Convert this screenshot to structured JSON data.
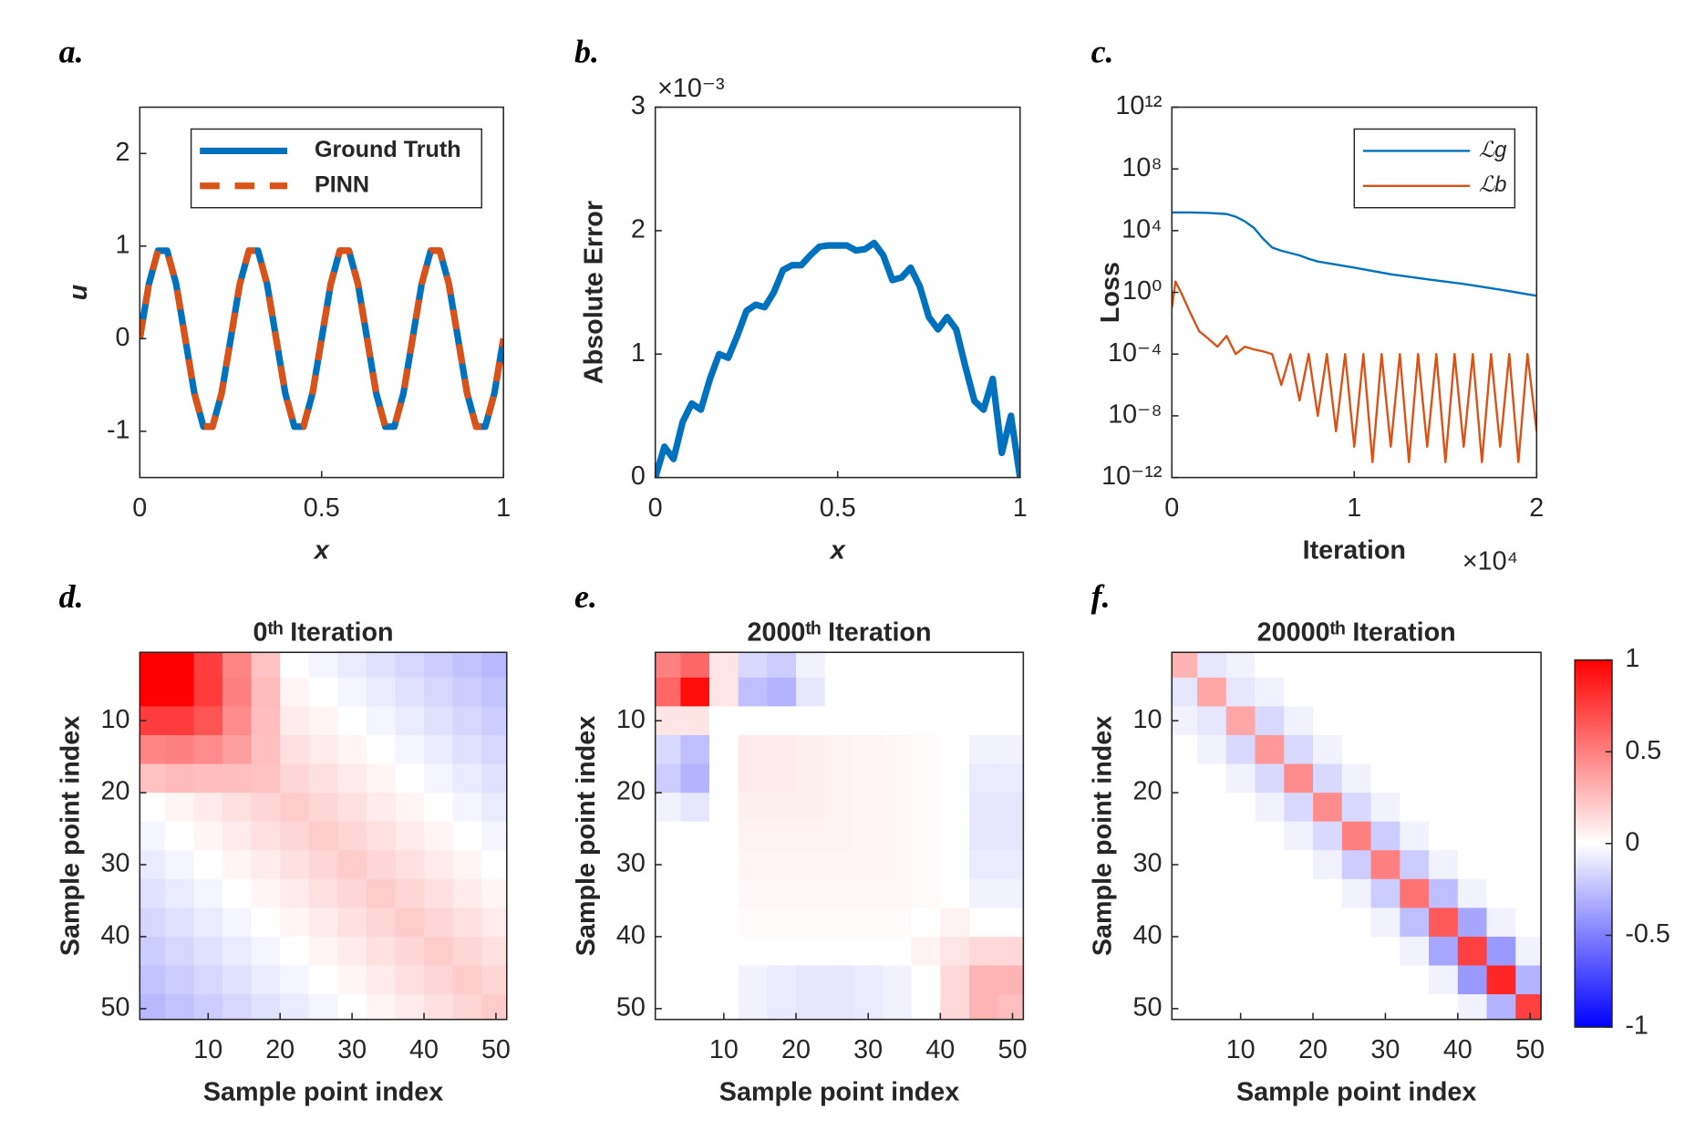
{
  "chart_data": [
    {
      "type": "line",
      "label": "a.",
      "xlabel": "x",
      "ylabel": "u",
      "xlim": [
        0,
        1
      ],
      "ylim": [
        -1.5,
        2.5
      ],
      "xticks": [
        0,
        0.5,
        1
      ],
      "yticks": [
        -1,
        0,
        1,
        2
      ],
      "legend": "upper right",
      "x": [
        0,
        0.025,
        0.05,
        0.075,
        0.1,
        0.125,
        0.15,
        0.175,
        0.2,
        0.225,
        0.25,
        0.275,
        0.3,
        0.325,
        0.35,
        0.375,
        0.4,
        0.425,
        0.45,
        0.475,
        0.5,
        0.525,
        0.55,
        0.575,
        0.6,
        0.625,
        0.65,
        0.675,
        0.7,
        0.725,
        0.75,
        0.775,
        0.8,
        0.825,
        0.85,
        0.875,
        0.9,
        0.925,
        0.95,
        0.975,
        1
      ],
      "series": [
        {
          "name": "Ground Truth",
          "color": "#0072bd",
          "style": "solid",
          "values": [
            0,
            0.59,
            0.95,
            0.95,
            0.59,
            0,
            -0.59,
            -0.95,
            -0.95,
            -0.59,
            0,
            0.59,
            0.95,
            0.95,
            0.59,
            0,
            -0.59,
            -0.95,
            -0.95,
            -0.59,
            0,
            0.59,
            0.95,
            0.95,
            0.59,
            0,
            -0.59,
            -0.95,
            -0.95,
            -0.59,
            0,
            0.59,
            0.95,
            0.95,
            0.59,
            0,
            -0.59,
            -0.95,
            -0.95,
            -0.59,
            0
          ]
        },
        {
          "name": "PINN",
          "color": "#d95319",
          "style": "dashed",
          "values": [
            0,
            0.59,
            0.95,
            0.95,
            0.59,
            0,
            -0.59,
            -0.95,
            -0.95,
            -0.59,
            0,
            0.59,
            0.95,
            0.95,
            0.59,
            0,
            -0.59,
            -0.95,
            -0.95,
            -0.59,
            0,
            0.59,
            0.95,
            0.95,
            0.59,
            0,
            -0.59,
            -0.95,
            -0.95,
            -0.59,
            0,
            0.59,
            0.95,
            0.95,
            0.59,
            0,
            -0.59,
            -0.95,
            -0.95,
            -0.59,
            0
          ]
        }
      ]
    },
    {
      "type": "line",
      "label": "b.",
      "xlabel": "x",
      "ylabel": "Absolute Error",
      "annotation": "×10⁻³",
      "xlim": [
        0,
        1
      ],
      "ylim": [
        0,
        3
      ],
      "xticks": [
        0,
        0.5,
        1
      ],
      "yticks": [
        0,
        1,
        2,
        3
      ],
      "x": [
        0,
        0.025,
        0.05,
        0.075,
        0.1,
        0.125,
        0.15,
        0.175,
        0.2,
        0.225,
        0.25,
        0.275,
        0.3,
        0.325,
        0.35,
        0.375,
        0.4,
        0.425,
        0.45,
        0.475,
        0.5,
        0.525,
        0.55,
        0.575,
        0.6,
        0.625,
        0.65,
        0.675,
        0.7,
        0.725,
        0.75,
        0.775,
        0.8,
        0.825,
        0.85,
        0.875,
        0.9,
        0.925,
        0.95,
        0.975,
        1
      ],
      "series": [
        {
          "color": "#0072bd",
          "style": "solid",
          "values": [
            0,
            0.25,
            0.15,
            0.45,
            0.6,
            0.55,
            0.8,
            1.0,
            0.97,
            1.15,
            1.35,
            1.4,
            1.38,
            1.5,
            1.68,
            1.72,
            1.72,
            1.8,
            1.87,
            1.88,
            1.88,
            1.88,
            1.84,
            1.85,
            1.9,
            1.8,
            1.6,
            1.62,
            1.7,
            1.55,
            1.3,
            1.2,
            1.3,
            1.2,
            0.9,
            0.62,
            0.55,
            0.8,
            0.2,
            0.5,
            0
          ]
        }
      ]
    },
    {
      "type": "line",
      "label": "c.",
      "xlabel": "Iteration",
      "ylabel": "Loss",
      "annotation": "×10⁴",
      "yscale": "log",
      "legend": "upper right",
      "xlim": [
        0,
        2
      ],
      "ylim": [
        1e-12,
        1000000000000.0
      ],
      "xticks": [
        0,
        1,
        2
      ],
      "yticks": [
        {
          "value": 1e-12,
          "label": "10⁻¹²"
        },
        {
          "value": 1e-08,
          "label": "10⁻⁸"
        },
        {
          "value": 0.0001,
          "label": "10⁻⁴"
        },
        {
          "value": 1,
          "label": "10⁰"
        },
        {
          "value": 10000.0,
          "label": "10⁴"
        },
        {
          "value": 100000000.0,
          "label": "10⁸"
        },
        {
          "value": 1000000000000.0,
          "label": "10¹²"
        }
      ],
      "series": [
        {
          "name": "ℒg",
          "color": "#0072bd",
          "style": "thin",
          "x": [
            0,
            0.1,
            0.2,
            0.3,
            0.35,
            0.4,
            0.45,
            0.5,
            0.55,
            0.6,
            0.7,
            0.75,
            0.8,
            1.0,
            1.2,
            1.4,
            1.6,
            1.8,
            2.0
          ],
          "values": [
            150000,
            150000,
            140000,
            120000,
            80000,
            40000,
            15000,
            3000,
            800,
            500,
            250,
            150,
            100,
            40,
            15,
            7,
            3.5,
            1.5,
            0.6
          ]
        },
        {
          "name": "ℒb",
          "color": "#d95319",
          "style": "thin",
          "x": [
            0,
            0.02,
            0.05,
            0.1,
            0.15,
            0.2,
            0.25,
            0.3,
            0.35,
            0.4,
            0.45,
            0.5,
            0.55,
            0.6,
            0.65,
            0.7,
            0.75,
            0.8,
            0.85,
            0.9,
            0.95,
            1.0,
            1.05,
            1.1,
            1.15,
            1.2,
            1.25,
            1.3,
            1.35,
            1.4,
            1.45,
            1.5,
            1.55,
            1.6,
            1.65,
            1.7,
            1.75,
            1.8,
            1.85,
            1.9,
            1.95,
            2.0
          ],
          "values": [
            0.1,
            5,
            1,
            0.05,
            0.003,
            0.001,
            0.0003,
            0.0015,
            0.0001,
            0.0003,
            0.0002,
            0.00015,
            0.0001,
            1e-06,
            0.0001,
            1e-07,
            0.0001,
            1e-08,
            0.0001,
            1e-09,
            0.0001,
            1e-10,
            0.0001,
            1e-11,
            0.0001,
            1e-10,
            0.0001,
            1e-11,
            0.0001,
            1e-10,
            0.0001,
            1e-11,
            0.0001,
            1e-10,
            0.0001,
            1e-11,
            0.0001,
            1e-10,
            0.0001,
            1e-11,
            0.0001,
            1e-09
          ]
        }
      ]
    },
    {
      "type": "heatmap",
      "label": "d.",
      "title": "0ᵗʰ Iteration",
      "xlabel": "Sample point index",
      "ylabel": "Sample point index",
      "xlim": [
        0.5,
        51.5
      ],
      "ylim": [
        51.5,
        0.5
      ],
      "xticks": [
        10,
        20,
        30,
        40,
        50
      ],
      "yticks": [
        10,
        20,
        30,
        40,
        50
      ],
      "clim": [
        -1,
        1
      ],
      "x": [
        2,
        6,
        10,
        14,
        18,
        22,
        26,
        30,
        34,
        38,
        42,
        46,
        50
      ],
      "y": [
        2,
        6,
        10,
        14,
        18,
        22,
        26,
        30,
        34,
        38,
        42,
        46,
        50
      ],
      "z": [
        [
          1.0,
          1.0,
          0.76,
          0.48,
          0.24,
          0,
          -0.04,
          -0.08,
          -0.12,
          -0.16,
          -0.2,
          -0.24,
          -0.28
        ],
        [
          1.0,
          1.0,
          0.77,
          0.5,
          0.27,
          0.04,
          0,
          -0.04,
          -0.08,
          -0.12,
          -0.16,
          -0.2,
          -0.24
        ],
        [
          0.76,
          0.77,
          0.67,
          0.45,
          0.26,
          0.08,
          0.04,
          0,
          -0.04,
          -0.08,
          -0.12,
          -0.16,
          -0.2
        ],
        [
          0.48,
          0.5,
          0.45,
          0.38,
          0.25,
          0.12,
          0.08,
          0.04,
          0,
          -0.04,
          -0.08,
          -0.12,
          -0.16
        ],
        [
          0.24,
          0.27,
          0.26,
          0.25,
          0.24,
          0.16,
          0.12,
          0.08,
          0.04,
          0,
          -0.04,
          -0.08,
          -0.12
        ],
        [
          0,
          0.04,
          0.08,
          0.12,
          0.16,
          0.2,
          0.16,
          0.12,
          0.08,
          0.04,
          0,
          -0.04,
          -0.08
        ],
        [
          -0.04,
          0,
          0.04,
          0.08,
          0.12,
          0.16,
          0.2,
          0.16,
          0.12,
          0.08,
          0.04,
          0,
          -0.04
        ],
        [
          -0.08,
          -0.04,
          0,
          0.04,
          0.08,
          0.12,
          0.16,
          0.2,
          0.16,
          0.12,
          0.08,
          0.04,
          0
        ],
        [
          -0.12,
          -0.08,
          -0.04,
          0,
          0.04,
          0.08,
          0.12,
          0.16,
          0.2,
          0.16,
          0.12,
          0.08,
          0.04
        ],
        [
          -0.16,
          -0.12,
          -0.08,
          -0.04,
          0,
          0.04,
          0.08,
          0.12,
          0.16,
          0.2,
          0.16,
          0.12,
          0.08
        ],
        [
          -0.2,
          -0.16,
          -0.12,
          -0.08,
          -0.04,
          0,
          0.04,
          0.08,
          0.12,
          0.16,
          0.2,
          0.16,
          0.12
        ],
        [
          -0.24,
          -0.2,
          -0.16,
          -0.12,
          -0.08,
          -0.04,
          0,
          0.04,
          0.08,
          0.12,
          0.16,
          0.2,
          0.16
        ],
        [
          -0.28,
          -0.24,
          -0.2,
          -0.16,
          -0.12,
          -0.08,
          -0.04,
          0,
          0.04,
          0.08,
          0.12,
          0.16,
          0.2
        ]
      ]
    },
    {
      "type": "heatmap",
      "label": "e.",
      "title": "2000ᵗʰ Iteration",
      "xlabel": "Sample point index",
      "ylabel": "Sample point index",
      "xlim": [
        0.5,
        51.5
      ],
      "ylim": [
        51.5,
        0.5
      ],
      "xticks": [
        10,
        20,
        30,
        40,
        50
      ],
      "yticks": [
        10,
        20,
        30,
        40,
        50
      ],
      "clim": [
        -1,
        1
      ],
      "x": [
        2,
        6,
        10,
        14,
        18,
        22,
        26,
        30,
        34,
        38,
        42,
        46,
        50
      ],
      "y": [
        2,
        6,
        10,
        14,
        18,
        22,
        26,
        30,
        34,
        38,
        42,
        46,
        50
      ],
      "z": [
        [
          0.5,
          0.6,
          0.1,
          -0.15,
          -0.2,
          -0.05,
          0,
          0,
          0,
          0,
          0,
          0,
          0
        ],
        [
          0.6,
          0.95,
          0.1,
          -0.25,
          -0.3,
          -0.1,
          0,
          0,
          0,
          0,
          0,
          0,
          0
        ],
        [
          0.1,
          0.1,
          0,
          0,
          0,
          0,
          0,
          0,
          0,
          0,
          0,
          0,
          0
        ],
        [
          -0.15,
          -0.25,
          0,
          0.08,
          0.08,
          0.06,
          0.05,
          0.04,
          0.03,
          0.02,
          0,
          -0.05,
          -0.05
        ],
        [
          -0.2,
          -0.3,
          0,
          0.08,
          0.08,
          0.06,
          0.05,
          0.04,
          0.03,
          0.02,
          0,
          -0.08,
          -0.08
        ],
        [
          -0.05,
          -0.1,
          0,
          0.06,
          0.06,
          0.06,
          0.05,
          0.04,
          0.03,
          0.02,
          0,
          -0.1,
          -0.1
        ],
        [
          0,
          0,
          0,
          0.05,
          0.05,
          0.05,
          0.05,
          0.04,
          0.03,
          0.02,
          0,
          -0.1,
          -0.1
        ],
        [
          0,
          0,
          0,
          0.04,
          0.04,
          0.04,
          0.04,
          0.04,
          0.03,
          0.02,
          0,
          -0.08,
          -0.08
        ],
        [
          0,
          0,
          0,
          0.03,
          0.03,
          0.03,
          0.03,
          0.03,
          0.03,
          0.02,
          0,
          -0.05,
          -0.05
        ],
        [
          0,
          0,
          0,
          0.02,
          0.02,
          0.02,
          0.02,
          0.02,
          0.02,
          0,
          0.05,
          0,
          0
        ],
        [
          0,
          0,
          0,
          0,
          0,
          0,
          0,
          0,
          0,
          0.05,
          0.1,
          0.15,
          0.15
        ],
        [
          0,
          0,
          0,
          -0.05,
          -0.08,
          -0.1,
          -0.1,
          -0.08,
          -0.05,
          0,
          0.15,
          0.3,
          0.3
        ],
        [
          0,
          0,
          0,
          -0.05,
          -0.08,
          -0.1,
          -0.1,
          -0.08,
          -0.05,
          0,
          0.15,
          0.3,
          0.25
        ]
      ]
    },
    {
      "type": "heatmap",
      "label": "f.",
      "title": "20000ᵗʰ Iteration",
      "xlabel": "Sample point index",
      "ylabel": "Sample point index",
      "xlim": [
        0.5,
        51.5
      ],
      "ylim": [
        51.5,
        0.5
      ],
      "xticks": [
        10,
        20,
        30,
        40,
        50
      ],
      "yticks": [
        10,
        20,
        30,
        40,
        50
      ],
      "clim": [
        -1,
        1
      ],
      "colorbar": {
        "ticks": [
          -1,
          -0.5,
          0,
          0.5,
          1
        ]
      },
      "x": [
        2,
        6,
        10,
        14,
        18,
        22,
        26,
        30,
        34,
        38,
        42,
        46,
        50
      ],
      "y": [
        2,
        6,
        10,
        14,
        18,
        22,
        26,
        30,
        34,
        38,
        42,
        46,
        50
      ],
      "z": [
        [
          0.3,
          -0.1,
          -0.05,
          0,
          0,
          0,
          0,
          0,
          0,
          0,
          0,
          0,
          0
        ],
        [
          -0.1,
          0.35,
          -0.1,
          -0.05,
          0,
          0,
          0,
          0,
          0,
          0,
          0,
          0,
          0
        ],
        [
          -0.05,
          -0.1,
          0.35,
          -0.15,
          -0.05,
          0,
          0,
          0,
          0,
          0,
          0,
          0,
          0
        ],
        [
          0,
          -0.05,
          -0.15,
          0.4,
          -0.15,
          -0.05,
          0,
          0,
          0,
          0,
          0,
          0,
          0
        ],
        [
          0,
          0,
          -0.05,
          -0.15,
          0.45,
          -0.15,
          -0.05,
          0,
          0,
          0,
          0,
          0,
          0
        ],
        [
          0,
          0,
          0,
          -0.05,
          -0.15,
          0.45,
          -0.15,
          -0.05,
          0,
          0,
          0,
          0,
          0
        ],
        [
          0,
          0,
          0,
          0,
          -0.05,
          -0.15,
          0.5,
          -0.2,
          -0.05,
          0,
          0,
          0,
          0
        ],
        [
          0,
          0,
          0,
          0,
          0,
          -0.05,
          -0.2,
          0.5,
          -0.2,
          -0.05,
          0,
          0,
          0
        ],
        [
          0,
          0,
          0,
          0,
          0,
          0,
          -0.05,
          -0.2,
          0.55,
          -0.25,
          -0.05,
          0,
          0
        ],
        [
          0,
          0,
          0,
          0,
          0,
          0,
          0,
          -0.05,
          -0.25,
          0.65,
          -0.35,
          -0.05,
          0
        ],
        [
          0,
          0,
          0,
          0,
          0,
          0,
          0,
          0,
          -0.05,
          -0.35,
          0.75,
          -0.4,
          -0.05
        ],
        [
          0,
          0,
          0,
          0,
          0,
          0,
          0,
          0,
          0,
          -0.05,
          -0.4,
          0.85,
          -0.3
        ],
        [
          0,
          0,
          0,
          0,
          0,
          0,
          0,
          0,
          0,
          0,
          -0.05,
          -0.3,
          0.75
        ]
      ]
    }
  ]
}
